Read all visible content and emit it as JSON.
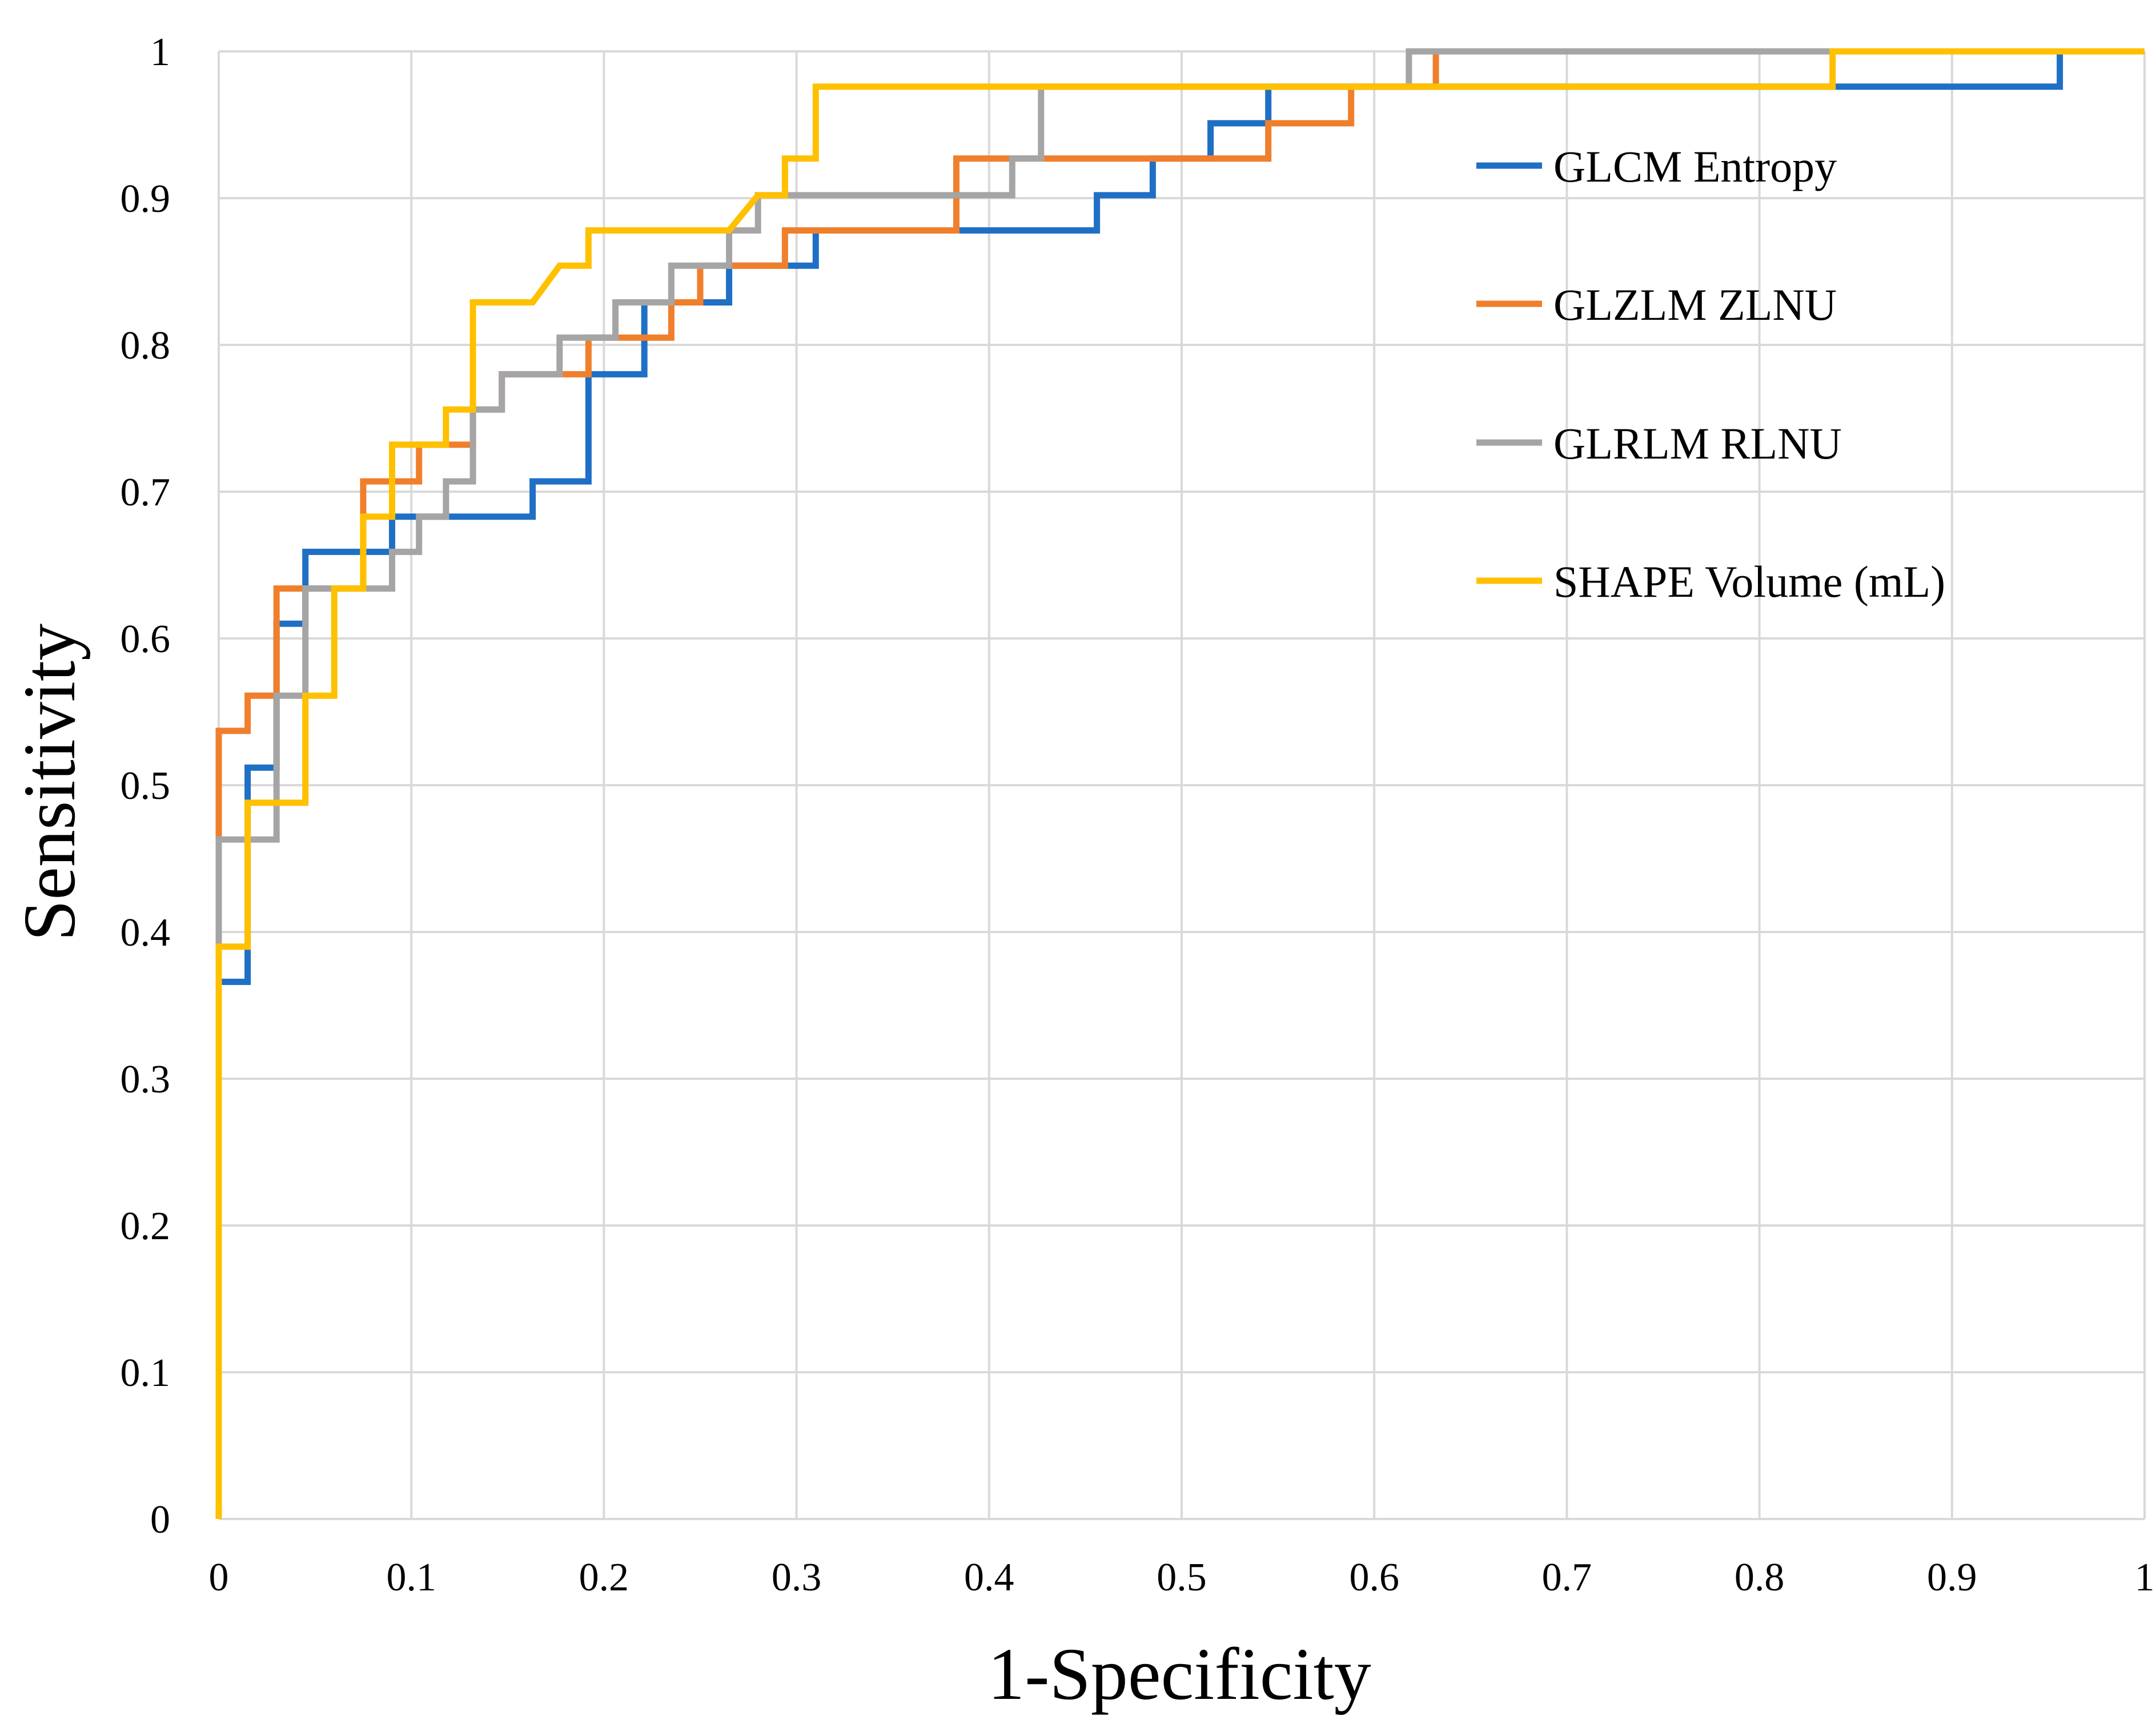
{
  "chart_data": {
    "type": "line",
    "title": "",
    "xlabel": "1-Specificity",
    "ylabel": "Sensitivity",
    "xlim": [
      0,
      1
    ],
    "ylim": [
      0,
      1
    ],
    "grid": true,
    "legend_position": "right",
    "x_ticks": [
      "0",
      "0.1",
      "0.2",
      "0.3",
      "0.4",
      "0.5",
      "0.6",
      "0.7",
      "0.8",
      "0.9",
      "1"
    ],
    "y_ticks": [
      "0",
      "0.1",
      "0.2",
      "0.3",
      "0.4",
      "0.5",
      "0.6",
      "0.7",
      "0.8",
      "0.9",
      "1"
    ],
    "series": [
      {
        "name": "GLCM Entropy",
        "color": "#1f6fc5",
        "points": [
          [
            0,
            0
          ],
          [
            0,
            0.366
          ],
          [
            0.015,
            0.366
          ],
          [
            0.015,
            0.512
          ],
          [
            0.03,
            0.512
          ],
          [
            0.03,
            0.61
          ],
          [
            0.045,
            0.61
          ],
          [
            0.045,
            0.659
          ],
          [
            0.09,
            0.659
          ],
          [
            0.09,
            0.683
          ],
          [
            0.163,
            0.683
          ],
          [
            0.163,
            0.707
          ],
          [
            0.192,
            0.707
          ],
          [
            0.192,
            0.78
          ],
          [
            0.221,
            0.78
          ],
          [
            0.221,
            0.829
          ],
          [
            0.265,
            0.829
          ],
          [
            0.265,
            0.854
          ],
          [
            0.31,
            0.854
          ],
          [
            0.31,
            0.878
          ],
          [
            0.456,
            0.878
          ],
          [
            0.456,
            0.902
          ],
          [
            0.485,
            0.902
          ],
          [
            0.485,
            0.927
          ],
          [
            0.515,
            0.927
          ],
          [
            0.515,
            0.951
          ],
          [
            0.545,
            0.951
          ],
          [
            0.545,
            0.976
          ],
          [
            0.956,
            0.976
          ],
          [
            0.956,
            1
          ],
          [
            1,
            1
          ]
        ]
      },
      {
        "name": "GLZLM ZLNU",
        "color": "#f07f2c",
        "points": [
          [
            0,
            0
          ],
          [
            0,
            0.463
          ],
          [
            0,
            0.537
          ],
          [
            0.015,
            0.537
          ],
          [
            0.015,
            0.561
          ],
          [
            0.03,
            0.561
          ],
          [
            0.03,
            0.634
          ],
          [
            0.075,
            0.634
          ],
          [
            0.075,
            0.707
          ],
          [
            0.104,
            0.707
          ],
          [
            0.104,
            0.732
          ],
          [
            0.132,
            0.732
          ],
          [
            0.132,
            0.756
          ],
          [
            0.147,
            0.756
          ],
          [
            0.147,
            0.78
          ],
          [
            0.192,
            0.78
          ],
          [
            0.192,
            0.805
          ],
          [
            0.235,
            0.805
          ],
          [
            0.235,
            0.829
          ],
          [
            0.25,
            0.829
          ],
          [
            0.25,
            0.854
          ],
          [
            0.294,
            0.854
          ],
          [
            0.294,
            0.878
          ],
          [
            0.383,
            0.878
          ],
          [
            0.383,
            0.927
          ],
          [
            0.545,
            0.927
          ],
          [
            0.545,
            0.951
          ],
          [
            0.588,
            0.951
          ],
          [
            0.588,
            0.976
          ],
          [
            0.632,
            0.976
          ],
          [
            0.632,
            1
          ],
          [
            1,
            1
          ]
        ]
      },
      {
        "name": "GLRLM RLNU",
        "color": "#a5a5a5",
        "points": [
          [
            0,
            0
          ],
          [
            0,
            0.463
          ],
          [
            0.03,
            0.463
          ],
          [
            0.03,
            0.561
          ],
          [
            0.045,
            0.561
          ],
          [
            0.045,
            0.634
          ],
          [
            0.075,
            0.634
          ],
          [
            0.075,
            0.634
          ],
          [
            0.09,
            0.634
          ],
          [
            0.09,
            0.659
          ],
          [
            0.104,
            0.659
          ],
          [
            0.104,
            0.683
          ],
          [
            0.118,
            0.683
          ],
          [
            0.118,
            0.707
          ],
          [
            0.132,
            0.707
          ],
          [
            0.132,
            0.756
          ],
          [
            0.147,
            0.756
          ],
          [
            0.147,
            0.78
          ],
          [
            0.177,
            0.78
          ],
          [
            0.177,
            0.805
          ],
          [
            0.206,
            0.805
          ],
          [
            0.206,
            0.829
          ],
          [
            0.235,
            0.829
          ],
          [
            0.235,
            0.854
          ],
          [
            0.265,
            0.854
          ],
          [
            0.265,
            0.878
          ],
          [
            0.28,
            0.878
          ],
          [
            0.28,
            0.902
          ],
          [
            0.412,
            0.902
          ],
          [
            0.412,
            0.927
          ],
          [
            0.427,
            0.927
          ],
          [
            0.427,
            0.976
          ],
          [
            0.618,
            0.976
          ],
          [
            0.618,
            1
          ],
          [
            1,
            1
          ]
        ]
      },
      {
        "name": "SHAPE Volume (mL)",
        "color": "#ffc000",
        "points": [
          [
            0,
            0
          ],
          [
            0,
            0.39
          ],
          [
            0.015,
            0.39
          ],
          [
            0.015,
            0.488
          ],
          [
            0.045,
            0.488
          ],
          [
            0.045,
            0.561
          ],
          [
            0.06,
            0.561
          ],
          [
            0.06,
            0.634
          ],
          [
            0.075,
            0.634
          ],
          [
            0.075,
            0.683
          ],
          [
            0.09,
            0.683
          ],
          [
            0.09,
            0.732
          ],
          [
            0.118,
            0.732
          ],
          [
            0.118,
            0.756
          ],
          [
            0.132,
            0.756
          ],
          [
            0.132,
            0.829
          ],
          [
            0.163,
            0.829
          ],
          [
            0.177,
            0.854
          ],
          [
            0.192,
            0.854
          ],
          [
            0.192,
            0.878
          ],
          [
            0.265,
            0.878
          ],
          [
            0.28,
            0.902
          ],
          [
            0.294,
            0.902
          ],
          [
            0.294,
            0.927
          ],
          [
            0.31,
            0.927
          ],
          [
            0.31,
            0.976
          ],
          [
            0.838,
            0.976
          ],
          [
            0.838,
            1
          ],
          [
            1,
            1
          ]
        ]
      }
    ]
  }
}
